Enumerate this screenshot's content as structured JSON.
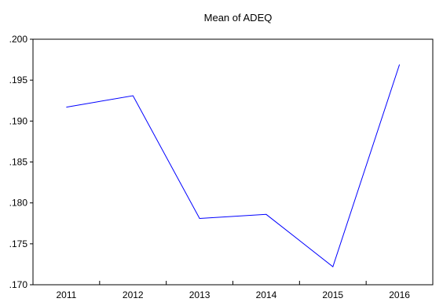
{
  "chart_data": {
    "type": "line",
    "title": "Mean of ADEQ",
    "xlabel": "",
    "ylabel": "",
    "categories": [
      "2011",
      "2012",
      "2013",
      "2014",
      "2015",
      "2016"
    ],
    "series": [
      {
        "values": [
          0.1917,
          0.1931,
          0.1781,
          0.1786,
          0.1722,
          0.1969
        ],
        "color": "#0000ff"
      }
    ],
    "ylim": [
      0.17,
      0.2
    ],
    "yticks": [
      0.17,
      0.175,
      0.18,
      0.185,
      0.19,
      0.195,
      0.2
    ],
    "ytick_labels": [
      ".170",
      ".175",
      ".180",
      ".185",
      ".190",
      ".195",
      ".200"
    ],
    "grid": false,
    "legend": "none"
  }
}
